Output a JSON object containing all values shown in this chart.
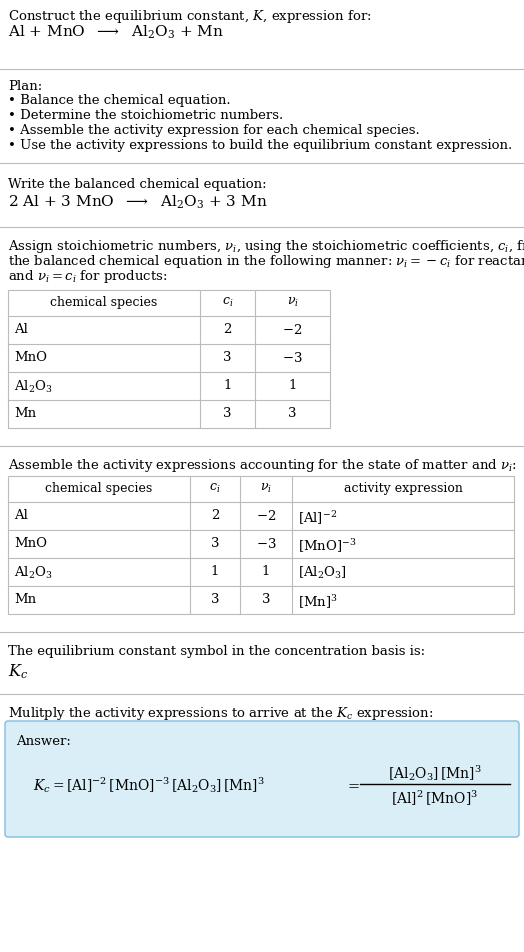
{
  "title_line1": "Construct the equilibrium constant, $K$, expression for:",
  "title_line2": "Al + MnO  $\\longrightarrow$  Al$_2$O$_3$ + Mn",
  "plan_header": "Plan:",
  "plan_items": [
    "\\u2022 Balance the chemical equation.",
    "\\u2022 Determine the stoichiometric numbers.",
    "\\u2022 Assemble the activity expression for each chemical species.",
    "\\u2022 Use the activity expressions to build the equilibrium constant expression."
  ],
  "balanced_header": "Write the balanced chemical equation:",
  "balanced_eq": "2 Al + 3 MnO  $\\longrightarrow$  Al$_2$O$_3$ + 3 Mn",
  "stoich_lines": [
    "Assign stoichiometric numbers, $\\nu_i$, using the stoichiometric coefficients, $c_i$, from",
    "the balanced chemical equation in the following manner: $\\nu_i = -c_i$ for reactants",
    "and $\\nu_i = c_i$ for products:"
  ],
  "table1_headers": [
    "chemical species",
    "$c_i$",
    "$\\nu_i$"
  ],
  "table1_rows": [
    [
      "Al",
      "2",
      "$-2$"
    ],
    [
      "MnO",
      "3",
      "$-3$"
    ],
    [
      "Al$_2$O$_3$",
      "1",
      "1"
    ],
    [
      "Mn",
      "3",
      "3"
    ]
  ],
  "activity_intro": "Assemble the activity expressions accounting for the state of matter and $\\nu_i$:",
  "table2_headers": [
    "chemical species",
    "$c_i$",
    "$\\nu_i$",
    "activity expression"
  ],
  "table2_rows": [
    [
      "Al",
      "2",
      "$-2$",
      "$[\\mathrm{Al}]^{-2}$"
    ],
    [
      "MnO",
      "3",
      "$-3$",
      "$[\\mathrm{MnO}]^{-3}$"
    ],
    [
      "Al$_2$O$_3$",
      "1",
      "1",
      "$[\\mathrm{Al_2O_3}]$"
    ],
    [
      "Mn",
      "3",
      "3",
      "$[\\mathrm{Mn}]^3$"
    ]
  ],
  "kc_text": "The equilibrium constant symbol in the concentration basis is:",
  "kc_symbol": "$K_c$",
  "multiply_text": "Mulitply the activity expressions to arrive at the $K_c$ expression:",
  "answer_label": "Answer:",
  "bg_color": "#ffffff",
  "table_line_color": "#bbbbbb",
  "answer_box_color": "#daeef8",
  "answer_box_border": "#7fbfdf",
  "text_color": "#000000",
  "font_size": 9.5,
  "fig_width": 5.24,
  "fig_height": 9.53
}
